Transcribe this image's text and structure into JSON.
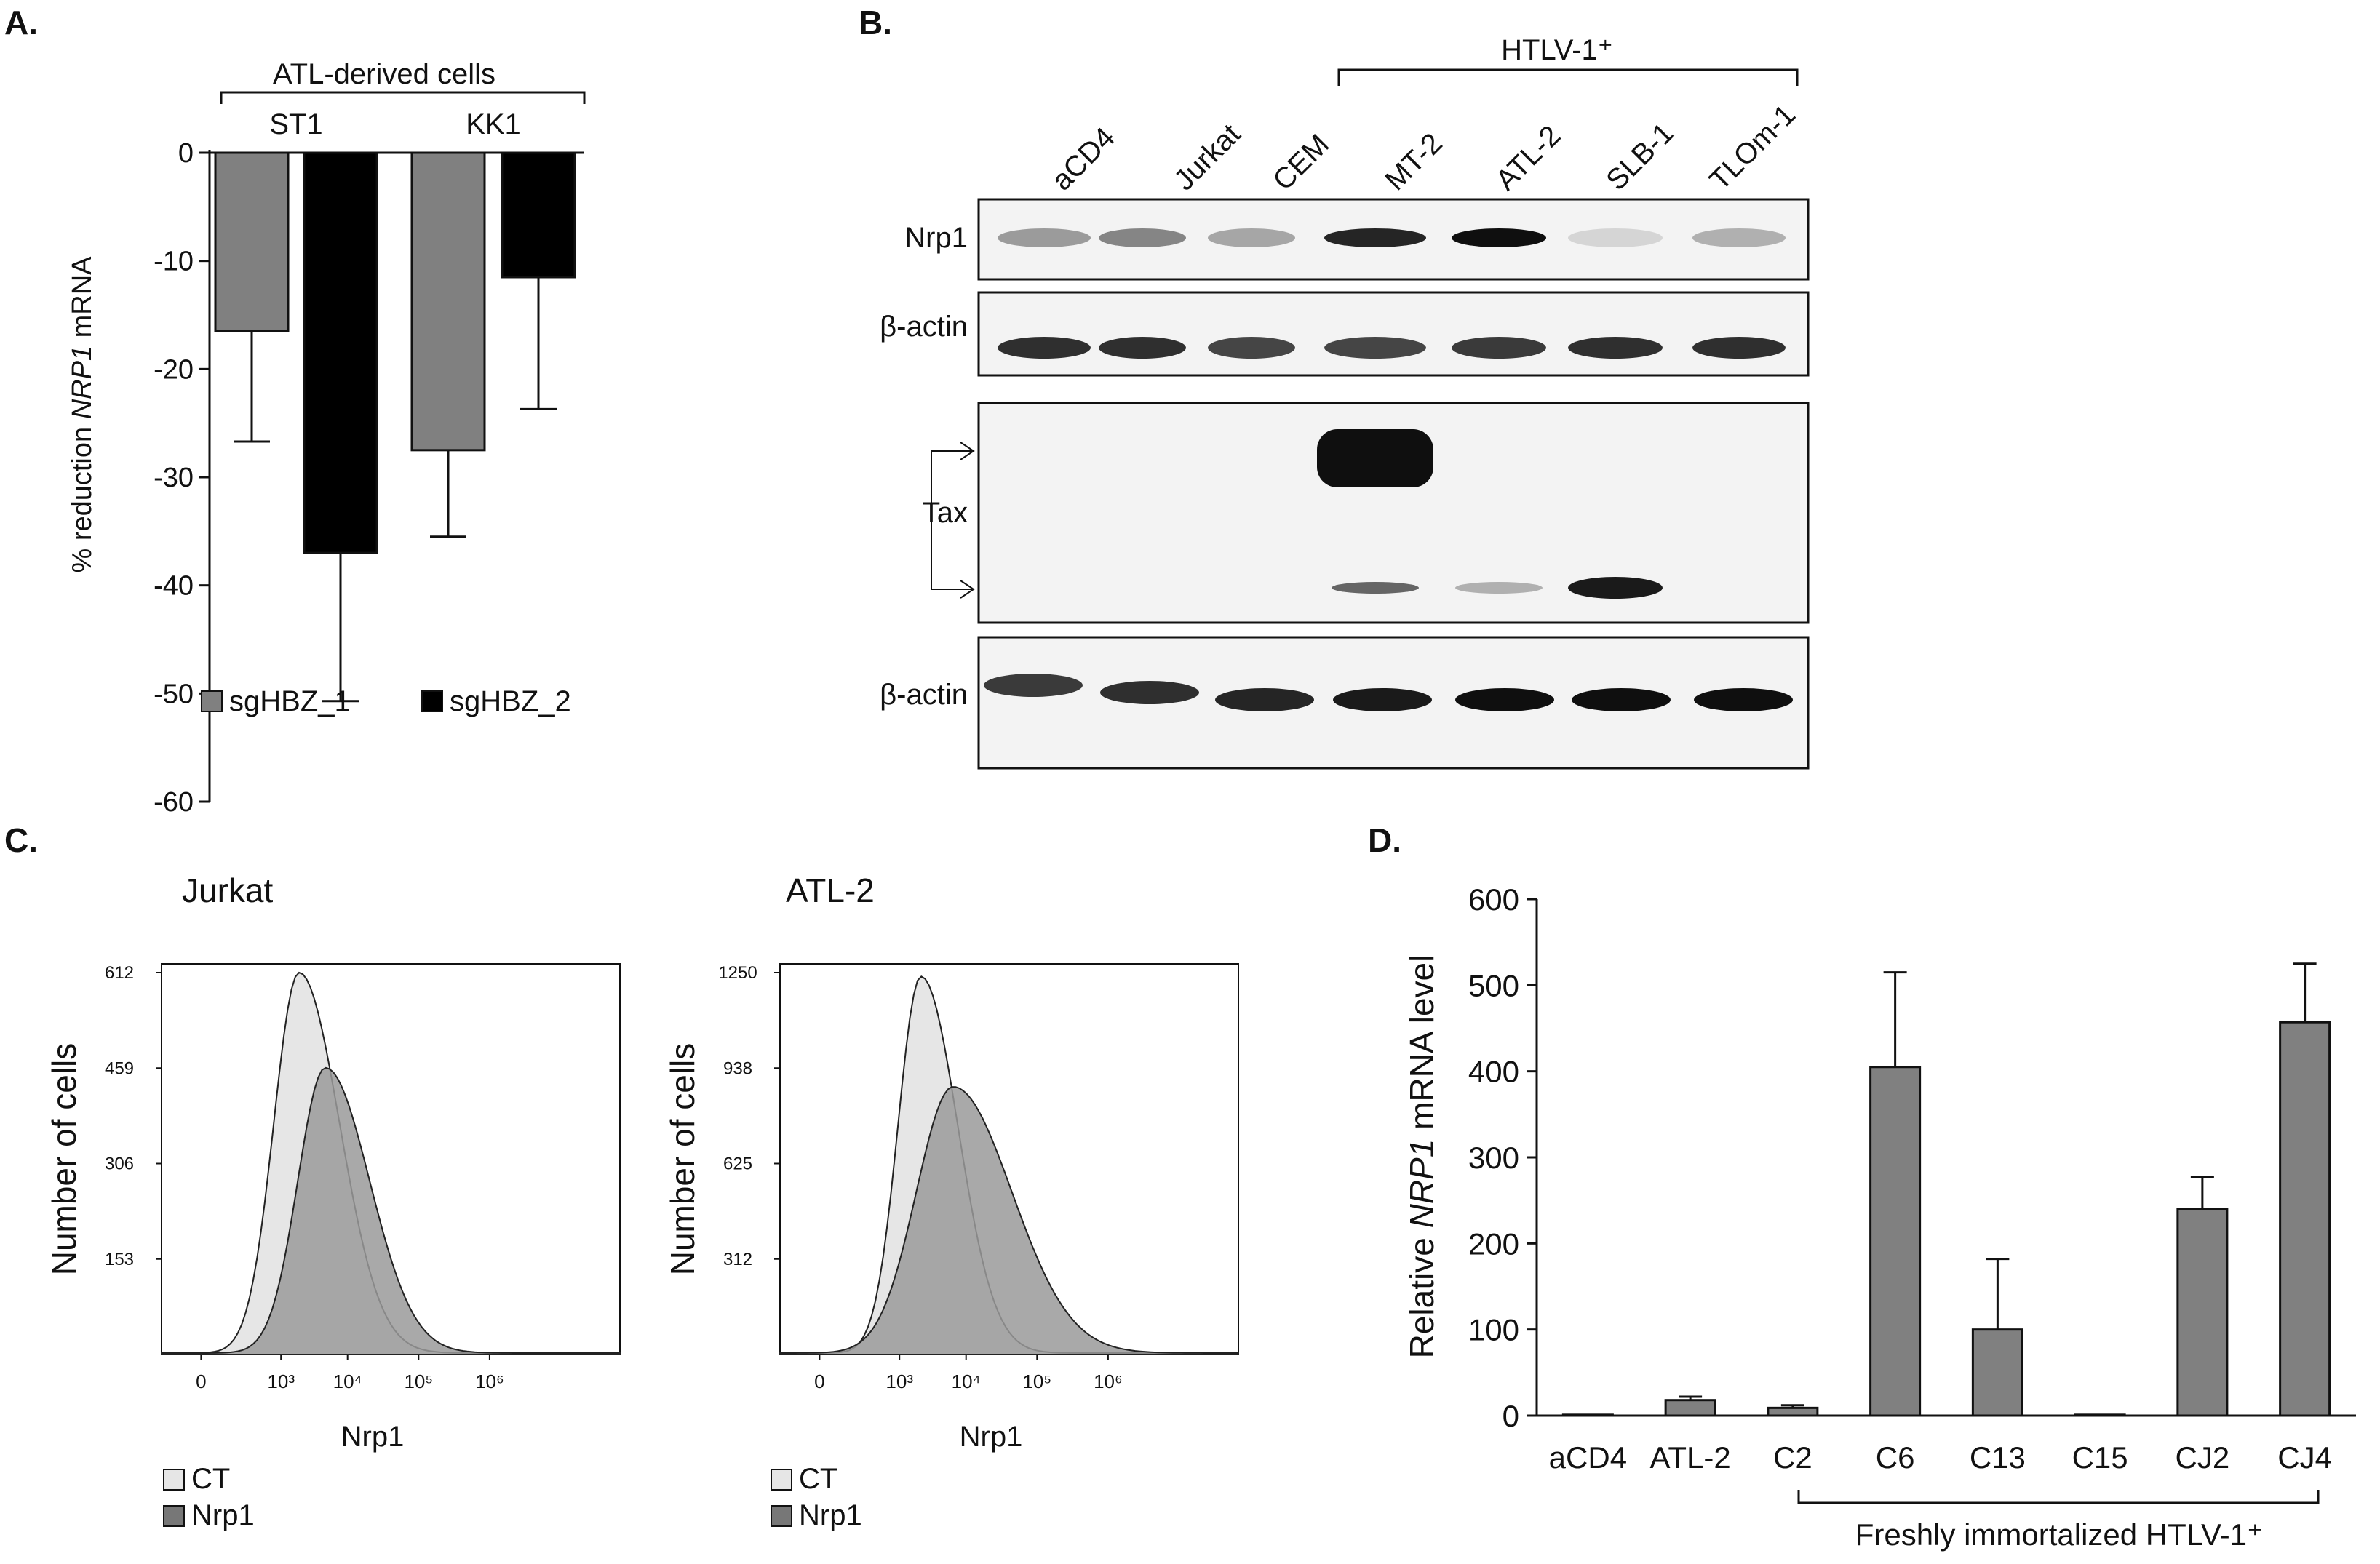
{
  "panels": {
    "A": {
      "label": "A.",
      "group_label": "ATL-derived cells",
      "legend": [
        {
          "name": "sgHBZ_1",
          "color": "#808080"
        },
        {
          "name": "sgHBZ_2",
          "color": "#000000"
        }
      ]
    },
    "B": {
      "label": "B.",
      "group_label": "HTLV-1⁺",
      "lanes": [
        "aCD4",
        "Jurkat",
        "CEM",
        "MT-2",
        "ATL-2",
        "SLB-1",
        "TLOm-1"
      ],
      "rows": [
        {
          "label": "Nrp1",
          "intensity": [
            0.35,
            0.45,
            0.3,
            0.9,
            1.0,
            0.08,
            0.25
          ]
        },
        {
          "label": "β-actin",
          "intensity": [
            0.85,
            0.85,
            0.75,
            0.75,
            0.8,
            0.85,
            0.85
          ]
        },
        {
          "label": "Tax",
          "intensity_top": [
            0,
            0,
            0,
            1.0,
            0,
            0,
            0
          ],
          "intensity_bottom": [
            0,
            0,
            0,
            0.6,
            0.25,
            0.95,
            0
          ]
        },
        {
          "label": "β-actin",
          "intensity": [
            0.8,
            0.85,
            0.9,
            0.95,
            1.0,
            1.0,
            1.0
          ]
        }
      ]
    },
    "C": {
      "label": "C.",
      "plots": [
        {
          "title": "Jurkat",
          "ylabel": "Number of cells",
          "xlabel": "Nrp1",
          "yticks": [
            "612",
            "459",
            "306",
            "153"
          ],
          "xticks": [
            "0",
            "10³",
            "10⁴",
            "10⁵",
            "10⁶"
          ]
        },
        {
          "title": "ATL-2",
          "ylabel": "Number of cells",
          "xlabel": "Nrp1",
          "yticks": [
            "1250",
            "938",
            "625",
            "312"
          ],
          "xticks": [
            "0",
            "10³",
            "10⁴",
            "10⁵",
            "10⁶"
          ]
        }
      ],
      "legend": [
        {
          "name": "CT",
          "color": "#e6e6e6"
        },
        {
          "name": "Nrp1",
          "color": "#808080"
        }
      ]
    },
    "D": {
      "label": "D.",
      "group_label": "Freshly immortalized HTLV-1⁺"
    }
  },
  "chart_data": [
    {
      "type": "bar",
      "panel": "A",
      "groups": [
        "ST1",
        "KK1"
      ],
      "series": [
        {
          "name": "sgHBZ_1",
          "values": [
            -16.5,
            -27.5
          ],
          "errors": [
            10.2,
            8.0
          ]
        },
        {
          "name": "sgHBZ_2",
          "values": [
            -37,
            -11.5
          ],
          "errors": [
            13.7,
            12.2
          ]
        }
      ],
      "ylabel": "% reduction NRP1 mRNA",
      "ylim": [
        -60,
        0
      ],
      "yticks": [
        "0",
        "-10",
        "-20",
        "-30",
        "-40",
        "-50",
        "-60"
      ]
    },
    {
      "type": "bar",
      "panel": "D",
      "categories": [
        "aCD4",
        "ATL-2",
        "C2",
        "C6",
        "C13",
        "C15",
        "CJ2",
        "CJ4"
      ],
      "values": [
        1,
        18,
        9,
        405,
        100,
        1,
        240,
        457
      ],
      "errors": [
        0,
        4,
        3,
        110,
        82,
        0,
        37,
        68
      ],
      "ylabel": "Relative NRP1 mRNA level",
      "ylim": [
        0,
        600
      ],
      "yticks": [
        "0",
        "100",
        "200",
        "300",
        "400",
        "500",
        "600"
      ]
    }
  ]
}
